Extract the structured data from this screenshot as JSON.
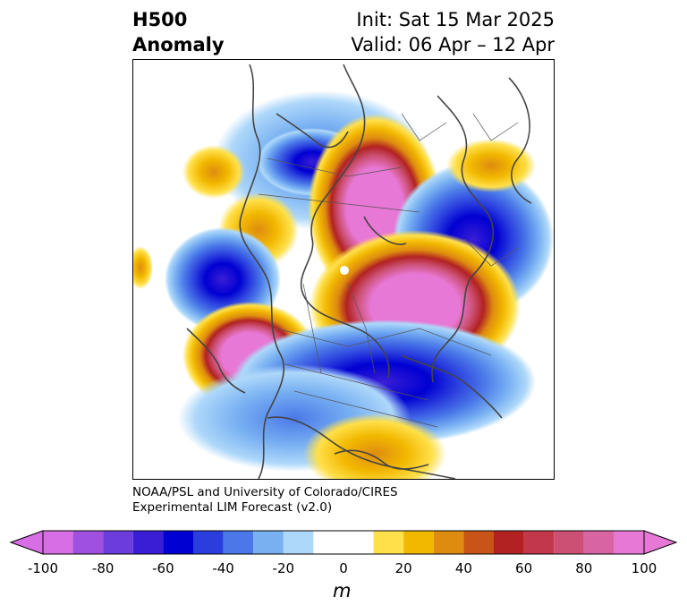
{
  "title": {
    "left_line1": "H500",
    "left_line2": "Anomaly",
    "right_line1": "Init: Sat 15 Mar 2025",
    "right_line2": "Valid: 06 Apr – 12 Apr"
  },
  "credit": {
    "line1": "NOAA/PSL and University of Colorado/CIRES",
    "line2": "Experimental LIM Forecast (v2.0)"
  },
  "colorbar": {
    "unit": "m",
    "tick_labels": [
      "-100",
      "-80",
      "-60",
      "-40",
      "-20",
      "0",
      "20",
      "40",
      "60",
      "80",
      "100"
    ],
    "levels": [
      -100,
      -90,
      -80,
      -70,
      -60,
      -50,
      -40,
      -30,
      -20,
      -10,
      10,
      20,
      30,
      40,
      50,
      60,
      70,
      80,
      90,
      100
    ],
    "colors": [
      "#d86ee6",
      "#a050de",
      "#6c3cdc",
      "#3a1ed6",
      "#0000d2",
      "#2a3ede",
      "#4a78e8",
      "#78b0f2",
      "#aed8fa",
      "#ffffff",
      "#ffe04a",
      "#f2b800",
      "#de8c10",
      "#c85418",
      "#b22222",
      "#c2384a",
      "#cc5074",
      "#d864a4",
      "#e878d6"
    ],
    "extend": "both"
  },
  "map": {
    "projection": "polar stereographic, North Pole",
    "field": "500 hPa geopotential height anomaly"
  }
}
